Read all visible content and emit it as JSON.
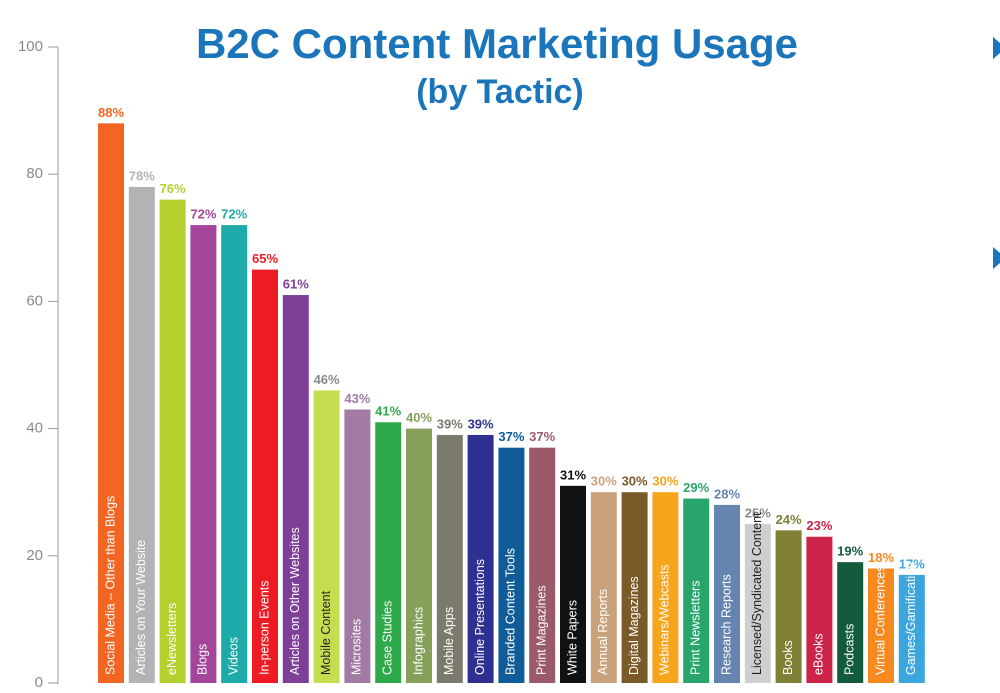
{
  "chart_data": {
    "type": "bar",
    "title": "B2C Content Marketing Usage",
    "subtitle": "(by Tactic)",
    "categories": [
      "Social Media – Other than Blogs",
      "Articles on Your Website",
      "eNewsletters",
      "Blogs",
      "Videos",
      "In-person Events",
      "Articles on Other Websites",
      "Mobile Content",
      "Microsites",
      "Case Studies",
      "Infographics",
      "Mobile Apps",
      "Online Presentations",
      "Branded Content Tools",
      "Print Magazines",
      "White Papers",
      "Annual Reports",
      "Digital Magazines",
      "Webinars/Webcasts",
      "Print Newsletters",
      "Research Reports",
      "Licensed/Syndicated Content",
      "Books",
      "eBooks",
      "Podcasts",
      "Virtual Conferences",
      "Games/Gamification"
    ],
    "values": [
      88,
      78,
      76,
      72,
      72,
      65,
      61,
      46,
      43,
      41,
      40,
      39,
      39,
      37,
      37,
      31,
      30,
      30,
      30,
      29,
      28,
      25,
      24,
      23,
      19,
      18,
      17
    ],
    "value_labels": [
      "88%",
      "78%",
      "76%",
      "72%",
      "72%",
      "65%",
      "61%",
      "46%",
      "43%",
      "41%",
      "40%",
      "39%",
      "39%",
      "37%",
      "37%",
      "31%",
      "30%",
      "30%",
      "30%",
      "29%",
      "28%",
      "25%",
      "24%",
      "23%",
      "19%",
      "18%",
      "17%"
    ],
    "colors": [
      "#f26522",
      "#b1b3b4",
      "#b5cf2f",
      "#a3469b",
      "#1eaaa8",
      "#ed1c24",
      "#7d3f98",
      "#c7dd50",
      "#a17ba4",
      "#2eaa4a",
      "#86a05a",
      "#7b7a6c",
      "#2e3192",
      "#0f5c99",
      "#9b5a6b",
      "#111111",
      "#c9a27a",
      "#7b5a2a",
      "#f7a51c",
      "#27a56b",
      "#6585b0",
      "#cfcfcf",
      "#7f7f35",
      "#cc2448",
      "#135a3e",
      "#f7891f",
      "#3aa6dd"
    ],
    "ylim": [
      0,
      100
    ],
    "yticks": [
      0,
      20,
      40,
      60,
      80,
      100
    ],
    "grid": false
  }
}
